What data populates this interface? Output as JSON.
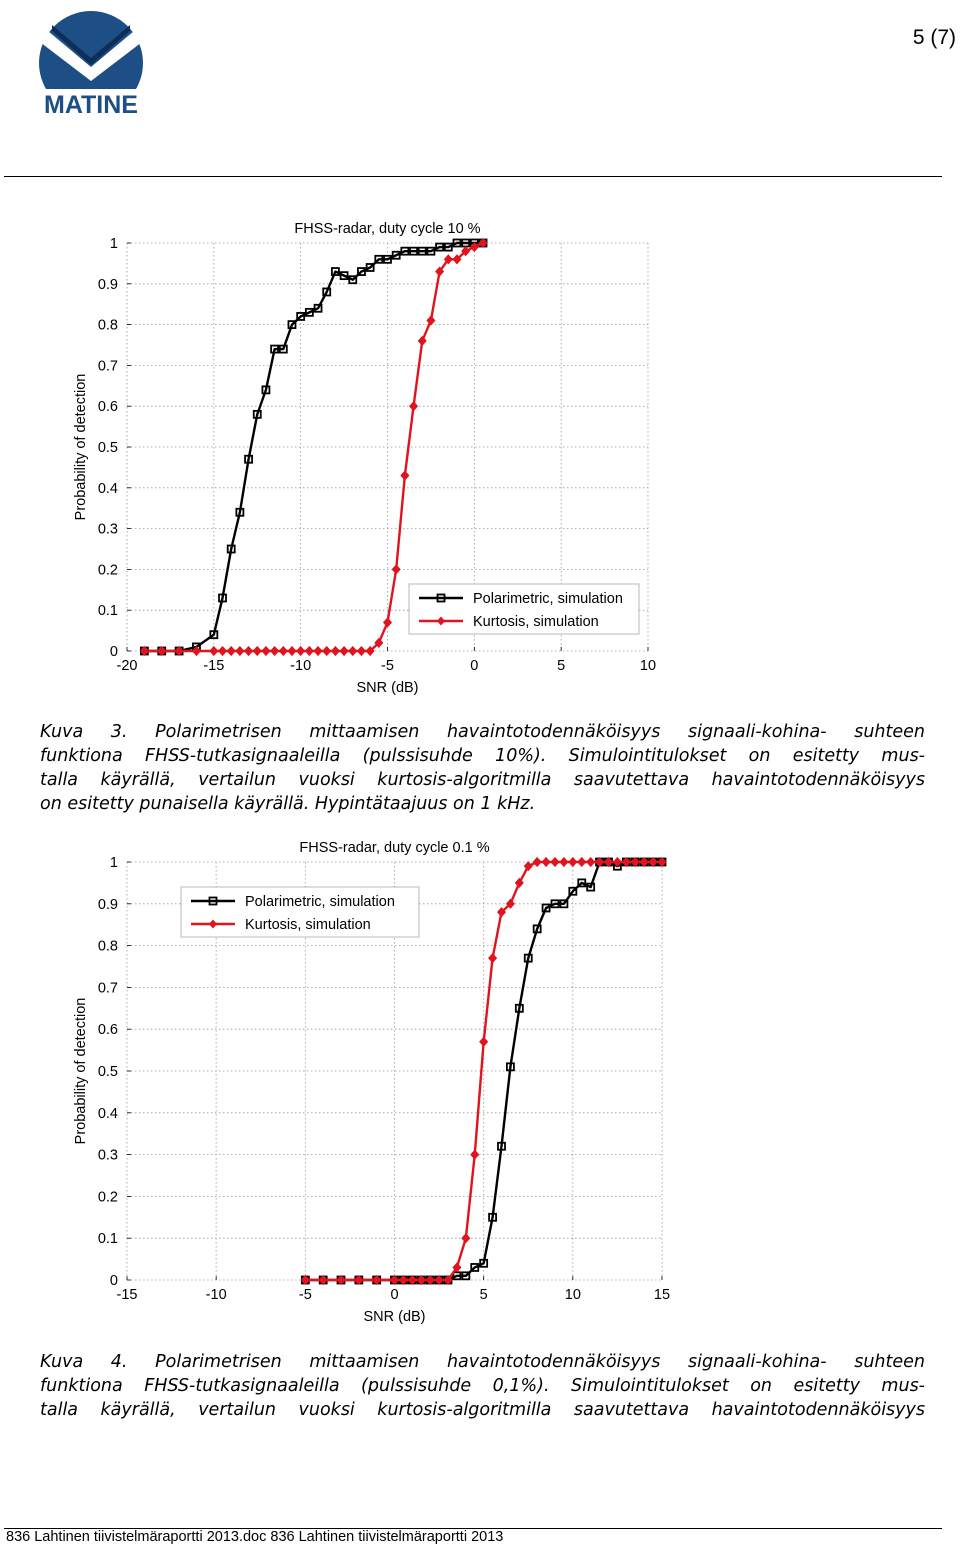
{
  "header": {
    "logo_text": "MATINE",
    "page_number": "5 (7)",
    "colors": {
      "logo_blue": "#1d4f86",
      "logo_dark": "#0d2f57"
    }
  },
  "figure1": {
    "caption_lines": [
      "Kuva 3. Polarimetrisen mittaamisen havaintotodennäköisyys signaali-kohina- suhteen",
      "funktiona FHSS-tutkasignaaleilla (pulssisuhde 10%). Simulointitulokset on esitetty mus-",
      "talla käyrällä, vertailun vuoksi kurtosis-algoritmilla saavutettava havaintotodennäköisyys",
      "on esitetty punaisella käyrällä. Hypintätaajuus on 1 kHz."
    ]
  },
  "figure2": {
    "caption_lines": [
      "Kuva 4. Polarimetrisen mittaamisen havaintotodennäköisyys signaali-kohina- suhteen",
      "funktiona FHSS-tutkasignaaleilla (pulssisuhde 0,1%). Simulointitulokset on esitetty mus-",
      "talla käyrällä, vertailun vuoksi kurtosis-algoritmilla saavutettava havaintotodennäköisyys"
    ]
  },
  "footer": {
    "text": "836 Lahtinen tiivistelmäraportti 2013.doc 836 Lahtinen tiivistelmäraportti 2013"
  },
  "chart_data": [
    {
      "type": "line",
      "title": "FHSS-radar, duty cycle 10 %",
      "xlabel": "SNR (dB)",
      "ylabel": "Probability of detection",
      "xlim": [
        -20,
        10
      ],
      "ylim": [
        0,
        1
      ],
      "xticks": [
        "-20",
        "-15",
        "-10",
        "-5",
        "0",
        "5",
        "10"
      ],
      "yticks": [
        "0",
        "0.1",
        "0.2",
        "0.3",
        "0.4",
        "0.5",
        "0.6",
        "0.7",
        "0.8",
        "0.9",
        "1"
      ],
      "grid": true,
      "legend": "bottom-right",
      "series": [
        {
          "name": "Polarimetric, simulation",
          "color": "#000000",
          "marker": "square",
          "x": [
            -19,
            -18,
            -17,
            -16,
            -15,
            -14.5,
            -14,
            -13.5,
            -13,
            -12.5,
            -12,
            -11.5,
            -11,
            -10.5,
            -10,
            -9.5,
            -9,
            -8.5,
            -8,
            -7.5,
            -7,
            -6.5,
            -6,
            -5.5,
            -5,
            -4.5,
            -4,
            -3.5,
            -3,
            -2.5,
            -2,
            -1.5,
            -1,
            -0.5,
            0,
            0.5
          ],
          "y": [
            0,
            0,
            0,
            0.01,
            0.04,
            0.13,
            0.25,
            0.34,
            0.47,
            0.58,
            0.64,
            0.74,
            0.74,
            0.8,
            0.82,
            0.83,
            0.84,
            0.88,
            0.93,
            0.92,
            0.91,
            0.93,
            0.94,
            0.96,
            0.96,
            0.97,
            0.98,
            0.98,
            0.98,
            0.98,
            0.99,
            0.99,
            1.0,
            1.0,
            1.0,
            1.0
          ]
        },
        {
          "name": "Kurtosis, simulation",
          "color": "#e0141e",
          "marker": "diamond",
          "x": [
            -19,
            -18,
            -17,
            -16,
            -15,
            -14.5,
            -14,
            -13.5,
            -13,
            -12.5,
            -12,
            -11.5,
            -11,
            -10.5,
            -10,
            -9.5,
            -9,
            -8.5,
            -8,
            -7.5,
            -7,
            -6.5,
            -6,
            -5.5,
            -5,
            -4.5,
            -4,
            -3.5,
            -3,
            -2.5,
            -2,
            -1.5,
            -1,
            -0.5,
            0,
            0.5
          ],
          "y": [
            0,
            0,
            0,
            0,
            0,
            0,
            0,
            0,
            0,
            0,
            0,
            0,
            0,
            0,
            0,
            0,
            0,
            0,
            0,
            0,
            0,
            0,
            0,
            0.02,
            0.07,
            0.2,
            0.43,
            0.6,
            0.76,
            0.81,
            0.93,
            0.96,
            0.96,
            0.98,
            0.99,
            1.0
          ]
        }
      ]
    },
    {
      "type": "line",
      "title": "FHSS-radar, duty cycle 0.1 %",
      "xlabel": "SNR (dB)",
      "ylabel": "Probability of detection",
      "xlim": [
        -15,
        15
      ],
      "ylim": [
        0,
        1
      ],
      "xticks": [
        "-15",
        "-10",
        "-5",
        "0",
        "5",
        "10",
        "15"
      ],
      "yticks": [
        "0",
        "0.1",
        "0.2",
        "0.3",
        "0.4",
        "0.5",
        "0.6",
        "0.7",
        "0.8",
        "0.9",
        "1"
      ],
      "grid": true,
      "legend": "top-left",
      "series": [
        {
          "name": "Polarimetric, simulation",
          "color": "#000000",
          "marker": "square",
          "x": [
            -5,
            -4,
            -3,
            -2,
            -1,
            0,
            0.5,
            1,
            1.5,
            2,
            2.5,
            3,
            3.5,
            4,
            4.5,
            5,
            5.5,
            6,
            6.5,
            7,
            7.5,
            8,
            8.5,
            9,
            9.5,
            10,
            10.5,
            11,
            11.5,
            12,
            12.5,
            13,
            13.5,
            14,
            14.5,
            15
          ],
          "y": [
            0,
            0,
            0,
            0,
            0,
            0,
            0,
            0,
            0,
            0,
            0,
            0,
            0.01,
            0.01,
            0.03,
            0.04,
            0.15,
            0.32,
            0.51,
            0.65,
            0.77,
            0.84,
            0.89,
            0.9,
            0.9,
            0.93,
            0.95,
            0.94,
            1.0,
            1.0,
            0.99,
            1.0,
            1.0,
            1.0,
            1.0,
            1.0
          ]
        },
        {
          "name": "Kurtosis, simulation",
          "color": "#e0141e",
          "marker": "diamond",
          "x": [
            -5,
            -4,
            -3,
            -2,
            -1,
            0,
            0.5,
            1,
            1.5,
            2,
            2.5,
            3,
            3.5,
            4,
            4.5,
            5,
            5.5,
            6,
            6.5,
            7,
            7.5,
            8,
            8.5,
            9,
            9.5,
            10,
            10.5,
            11,
            11.5,
            12,
            12.5,
            13,
            13.5,
            14,
            14.5,
            15
          ],
          "y": [
            0,
            0,
            0,
            0,
            0,
            0,
            0,
            0,
            0,
            0,
            0,
            0,
            0.03,
            0.1,
            0.3,
            0.57,
            0.77,
            0.88,
            0.9,
            0.95,
            0.99,
            1.0,
            1.0,
            1.0,
            1.0,
            1.0,
            1.0,
            1.0,
            1.0,
            1.0,
            1.0,
            1.0,
            1.0,
            1.0,
            1.0,
            1.0
          ]
        }
      ]
    }
  ]
}
